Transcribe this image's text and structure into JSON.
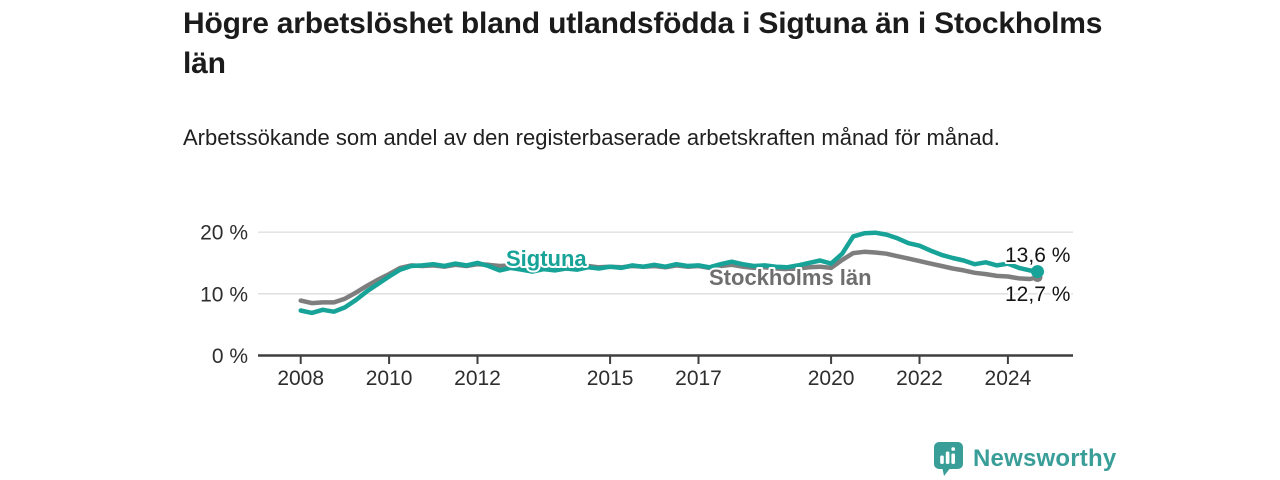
{
  "header": {
    "title": "Högre arbetslöshet bland utlandsfödda i Sigtuna än i Stockholms län",
    "subtitle": "Arbetssökande som andel av den registerbaserade arbetskraften månad för månad."
  },
  "chart_data": {
    "type": "line",
    "title": "Högre arbetslöshet bland utlandsfödda i Sigtuna än i Stockholms län",
    "subtitle": "Arbetssökande som andel av den registerbaserade arbetskraften månad för månad.",
    "xlabel": "",
    "ylabel": "",
    "xlim": [
      2007.05,
      2025.45
    ],
    "ylim": [
      0,
      22
    ],
    "grid": "horizontal-y",
    "y_ticks": [
      0,
      10,
      20
    ],
    "y_tick_labels": [
      "0 %",
      "10 %",
      "20 %"
    ],
    "y_grid_values": [
      10,
      20
    ],
    "x_ticks": [
      2008,
      2010,
      2012,
      2015,
      2017,
      2020,
      2022,
      2024
    ],
    "x_tick_labels": [
      "2008",
      "2010",
      "2012",
      "2015",
      "2017",
      "2020",
      "2022",
      "2024"
    ],
    "legend_position": "inline-labels",
    "x": [
      2008.0,
      2008.25,
      2008.5,
      2008.75,
      2009.0,
      2009.25,
      2009.5,
      2009.75,
      2010.0,
      2010.25,
      2010.5,
      2010.75,
      2011.0,
      2011.25,
      2011.5,
      2011.75,
      2012.0,
      2012.25,
      2012.5,
      2012.75,
      2013.0,
      2013.25,
      2013.5,
      2013.75,
      2014.0,
      2014.25,
      2014.5,
      2014.75,
      2015.0,
      2015.25,
      2015.5,
      2015.75,
      2016.0,
      2016.25,
      2016.5,
      2016.75,
      2017.0,
      2017.25,
      2017.5,
      2017.75,
      2018.0,
      2018.25,
      2018.5,
      2018.75,
      2019.0,
      2019.25,
      2019.5,
      2019.75,
      2020.0,
      2020.25,
      2020.5,
      2020.75,
      2021.0,
      2021.25,
      2021.5,
      2021.75,
      2022.0,
      2022.25,
      2022.5,
      2022.75,
      2023.0,
      2023.25,
      2023.5,
      2023.75,
      2024.0,
      2024.25,
      2024.5,
      2024.67
    ],
    "series": [
      {
        "name": "Sigtuna",
        "color": "#17a398",
        "end_label": "13,6 %",
        "end_value": 13.6,
        "values": [
          7.3,
          6.9,
          7.4,
          7.1,
          7.8,
          9.0,
          10.4,
          11.6,
          12.8,
          13.9,
          14.5,
          14.6,
          14.8,
          14.5,
          14.9,
          14.6,
          15.0,
          14.5,
          13.8,
          14.2,
          13.9,
          13.6,
          14.0,
          13.8,
          14.1,
          13.9,
          14.3,
          14.1,
          14.4,
          14.2,
          14.6,
          14.4,
          14.7,
          14.4,
          14.8,
          14.5,
          14.6,
          14.3,
          14.8,
          15.2,
          14.8,
          14.5,
          14.6,
          14.4,
          14.3,
          14.6,
          15.0,
          15.4,
          14.9,
          16.5,
          19.3,
          19.8,
          19.9,
          19.6,
          19.0,
          18.2,
          17.8,
          17.0,
          16.3,
          15.8,
          15.4,
          14.8,
          15.1,
          14.6,
          14.9,
          14.2,
          13.8,
          13.6
        ]
      },
      {
        "name": "Stockholms län",
        "color": "#7e7e7e",
        "label_color": "#6e6e6e",
        "end_label": "12,7 %",
        "end_value": 12.7,
        "values": [
          8.9,
          8.5,
          8.6,
          8.6,
          9.2,
          10.2,
          11.3,
          12.3,
          13.2,
          14.2,
          14.6,
          14.5,
          14.6,
          14.4,
          14.7,
          14.5,
          14.8,
          14.7,
          14.5,
          14.6,
          14.5,
          14.4,
          14.6,
          14.5,
          14.4,
          14.3,
          14.5,
          14.3,
          14.4,
          14.3,
          14.5,
          14.4,
          14.5,
          14.3,
          14.6,
          14.4,
          14.5,
          14.2,
          14.5,
          14.7,
          14.4,
          14.2,
          14.3,
          14.1,
          14.0,
          14.1,
          14.3,
          14.4,
          14.2,
          15.5,
          16.6,
          16.8,
          16.7,
          16.5,
          16.1,
          15.7,
          15.3,
          14.9,
          14.5,
          14.1,
          13.8,
          13.4,
          13.2,
          12.9,
          12.8,
          12.5,
          12.4,
          12.7
        ]
      }
    ],
    "colors": {
      "grid": "#dcdcdc",
      "axis": "#3f3f3f",
      "tick_text": "#2e2e2e",
      "value_label_text": "#141414"
    }
  },
  "footer": {
    "brand": "Newsworthy",
    "brand_color": "#3a9e98",
    "logo_icon": "bar-chart-speech-bubble-icon"
  }
}
